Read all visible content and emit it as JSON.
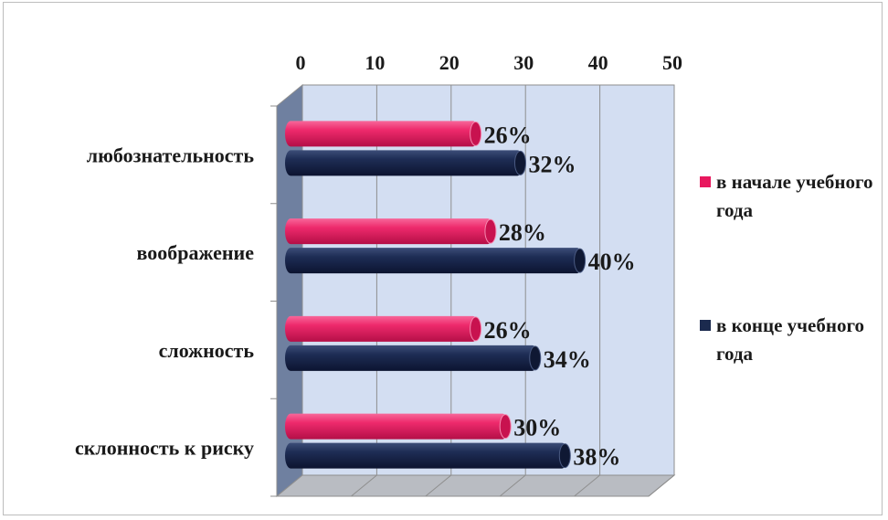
{
  "chart_data": {
    "type": "bar",
    "orientation": "horizontal",
    "title": "",
    "categories": [
      "любознательность",
      "воображение",
      "сложность",
      "склонность к риску"
    ],
    "series": [
      {
        "name": "в начале учебного года",
        "values": [
          26,
          28,
          26,
          30
        ],
        "labels": [
          "26%",
          "28%",
          "26%",
          "30%"
        ],
        "color": "#e8185e"
      },
      {
        "name": "в конце учебного года",
        "values": [
          32,
          40,
          34,
          38
        ],
        "labels": [
          "32%",
          "40%",
          "34%",
          "38%"
        ],
        "color": "#1b2a4e"
      }
    ],
    "xlim": [
      0,
      50
    ],
    "x_ticks": [
      "0",
      "10",
      "20",
      "30",
      "40",
      "50"
    ],
    "x_axis_position": "top",
    "grid": true,
    "legend_position": "right",
    "plot_background": "#d3def2"
  }
}
